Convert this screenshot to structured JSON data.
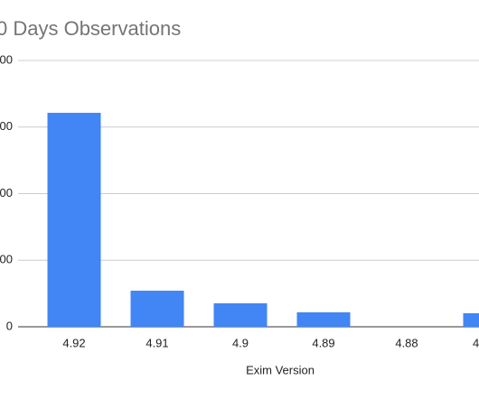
{
  "chart_data": {
    "type": "bar",
    "title": "0 Days Observations",
    "x_label": "Exim Version",
    "categories": [
      "4.92",
      "4.91",
      "4.9",
      "4.89",
      "4.88",
      "4"
    ],
    "values": [
      3214,
      542,
      353,
      217,
      0,
      203
    ],
    "color": "#4285f4",
    "ylim": [
      0,
      4000
    ],
    "yticks": [
      {
        "value": 0,
        "label": "0"
      },
      {
        "value": 1000,
        "label": "00"
      },
      {
        "value": 2000,
        "label": "00"
      },
      {
        "value": 3000,
        "label": "00"
      },
      {
        "value": 4000,
        "label": "00"
      }
    ],
    "grid": true
  }
}
